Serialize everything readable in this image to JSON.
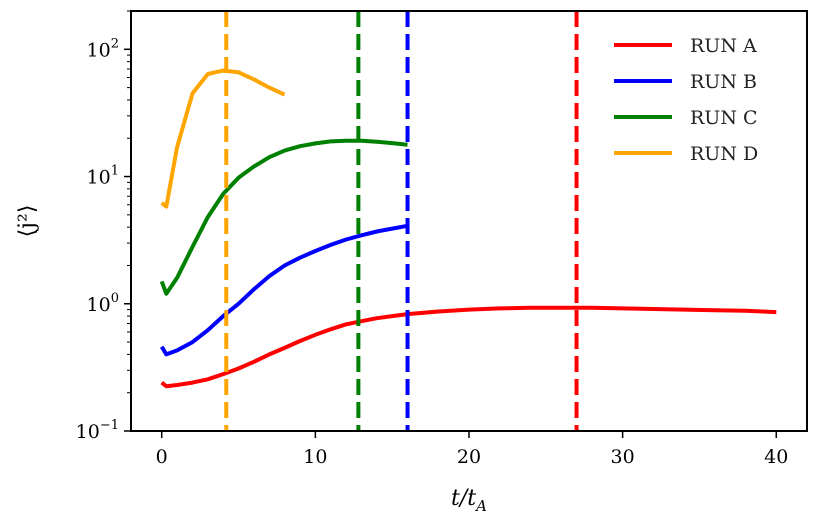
{
  "chart_data": {
    "type": "line",
    "title": "",
    "xlabel": "t/t_A",
    "ylabel": "⟨j²⟩",
    "y_scale": "log",
    "xlim": [
      -2,
      42
    ],
    "ylim": [
      0.1,
      200
    ],
    "x_ticks": [
      0,
      10,
      20,
      30,
      40
    ],
    "x_tick_labels": [
      "0",
      "10",
      "20",
      "30",
      "40"
    ],
    "y_ticks": [
      0.1,
      1,
      10,
      100
    ],
    "y_tick_labels": [
      {
        "base": "10",
        "exp": "−1"
      },
      {
        "base": "10",
        "exp": "0"
      },
      {
        "base": "10",
        "exp": "1"
      },
      {
        "base": "10",
        "exp": "2"
      }
    ],
    "grid": false,
    "legend_position": "top-right",
    "series": [
      {
        "name": "RUN A",
        "color": "#ff0000",
        "x": [
          0,
          0.3,
          1,
          2,
          3,
          4,
          5,
          6,
          7,
          8,
          9,
          10,
          11,
          12,
          13,
          14,
          15,
          16,
          18,
          20,
          22,
          24,
          26,
          28,
          30,
          32,
          34,
          36,
          38,
          40
        ],
        "y": [
          0.24,
          0.225,
          0.23,
          0.24,
          0.255,
          0.28,
          0.31,
          0.35,
          0.4,
          0.45,
          0.51,
          0.57,
          0.63,
          0.69,
          0.73,
          0.77,
          0.8,
          0.83,
          0.87,
          0.9,
          0.92,
          0.93,
          0.93,
          0.93,
          0.92,
          0.91,
          0.9,
          0.89,
          0.88,
          0.86
        ]
      },
      {
        "name": "RUN B",
        "color": "#0000ff",
        "x": [
          0,
          0.3,
          1,
          2,
          3,
          4,
          5,
          6,
          7,
          8,
          9,
          10,
          11,
          12,
          13,
          14,
          15,
          16
        ],
        "y": [
          0.46,
          0.4,
          0.43,
          0.5,
          0.62,
          0.8,
          1.0,
          1.3,
          1.65,
          2.0,
          2.3,
          2.6,
          2.9,
          3.2,
          3.45,
          3.7,
          3.9,
          4.1
        ]
      },
      {
        "name": "RUN C",
        "color": "#008000",
        "x": [
          0,
          0.3,
          1,
          2,
          3,
          4,
          5,
          6,
          7,
          8,
          9,
          10,
          11,
          12,
          13,
          14,
          15,
          16
        ],
        "y": [
          1.5,
          1.2,
          1.6,
          2.8,
          4.8,
          7.3,
          9.8,
          12.0,
          14.2,
          16.0,
          17.3,
          18.2,
          18.9,
          19.1,
          19.1,
          18.8,
          18.3,
          17.8
        ]
      },
      {
        "name": "RUN D",
        "color": "#ffa500",
        "x": [
          0,
          0.3,
          1,
          2,
          3,
          4,
          5,
          6,
          7,
          8
        ],
        "y": [
          6.2,
          5.8,
          17,
          45,
          64,
          68,
          66,
          58,
          50,
          44
        ]
      }
    ],
    "vertical_lines": [
      {
        "x": 4.2,
        "color": "#ffa500",
        "style": "dashed"
      },
      {
        "x": 12.8,
        "color": "#008000",
        "style": "dashed"
      },
      {
        "x": 16.0,
        "color": "#0000ff",
        "style": "dashed"
      },
      {
        "x": 27.0,
        "color": "#ff0000",
        "style": "dashed"
      }
    ]
  }
}
